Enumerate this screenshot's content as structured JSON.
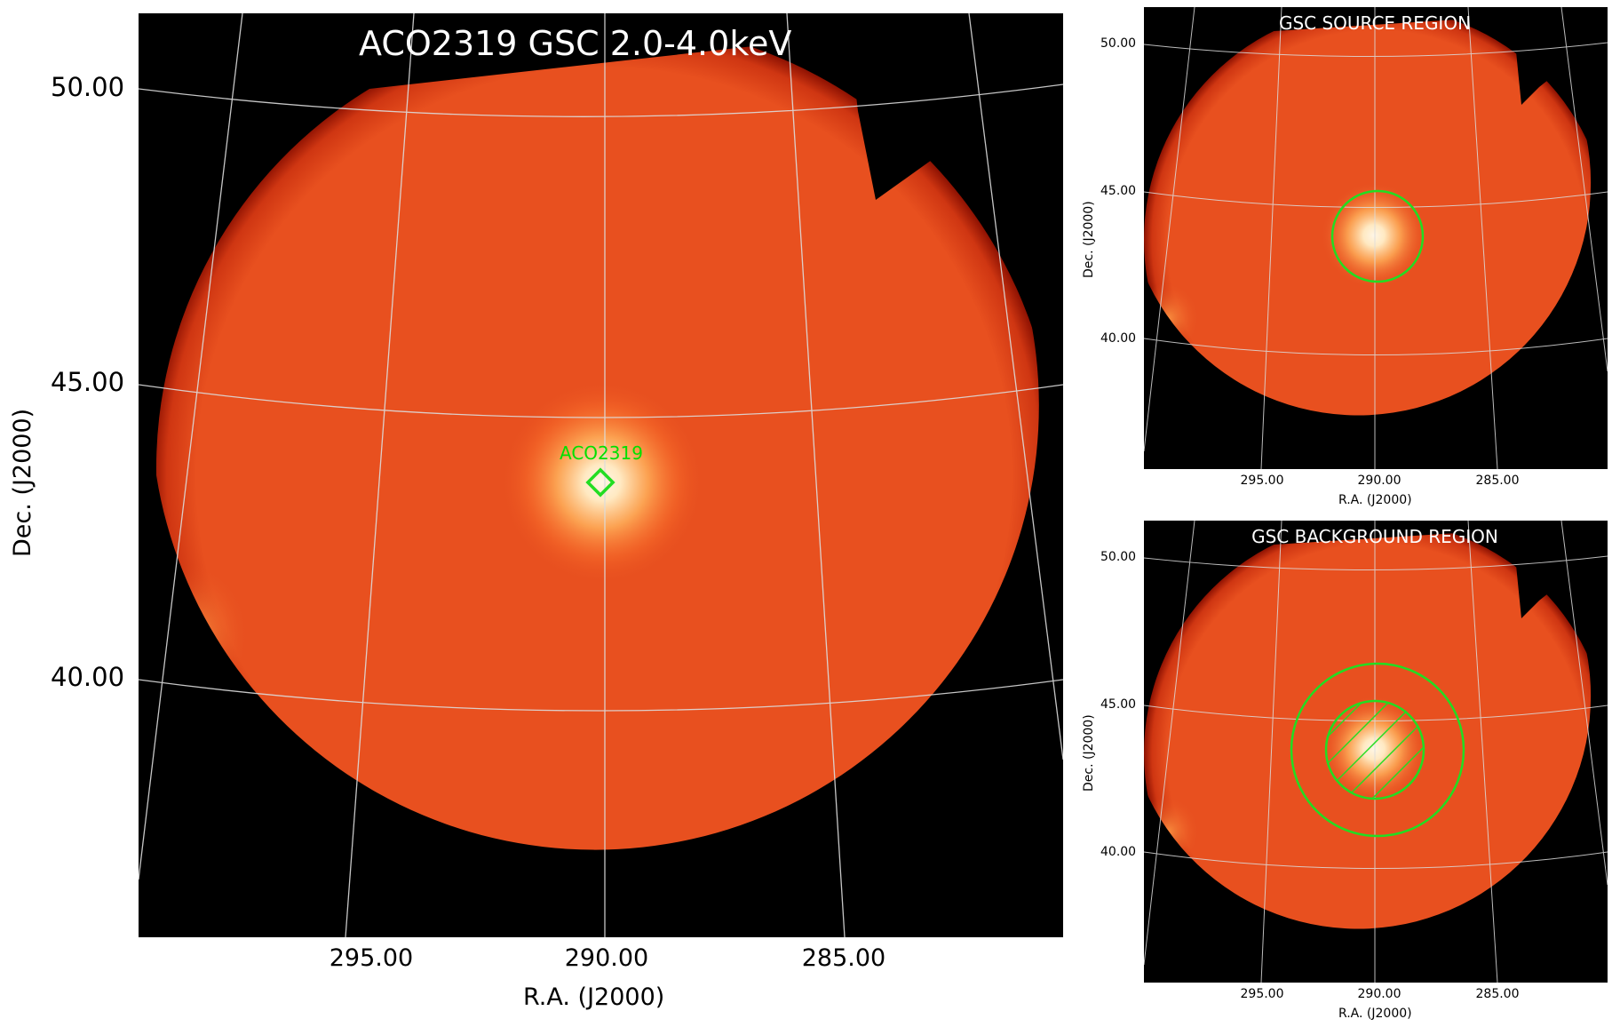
{
  "main": {
    "title": "ACO2319 GSC 2.0-4.0keV",
    "source_label": "ACO2319",
    "ylabel": "Dec. (J2000)",
    "xlabel": "R.A. (J2000)",
    "yticks": [
      "50.00",
      "45.00",
      "40.00"
    ],
    "xticks": [
      "295.00",
      "290.00",
      "285.00"
    ]
  },
  "source_panel": {
    "title": "GSC SOURCE REGION",
    "ylabel": "Dec. (J2000)",
    "xlabel": "R.A. (J2000)",
    "yticks": [
      "50.00",
      "45.00",
      "40.00"
    ],
    "xticks": [
      "295.00",
      "290.00",
      "285.00"
    ]
  },
  "background_panel": {
    "title": "GSC BACKGROUND REGION",
    "ylabel": "Dec. (J2000)",
    "xlabel": "R.A. (J2000)",
    "yticks": [
      "50.00",
      "45.00",
      "40.00"
    ],
    "xticks": [
      "295.00",
      "290.00",
      "285.00"
    ]
  },
  "colors": {
    "field": "#e8501f",
    "field_edge": "#b81e04",
    "hotspot": "#fff3de",
    "region": "#22dd22",
    "grid": "#dddddd",
    "background": "#000000"
  }
}
